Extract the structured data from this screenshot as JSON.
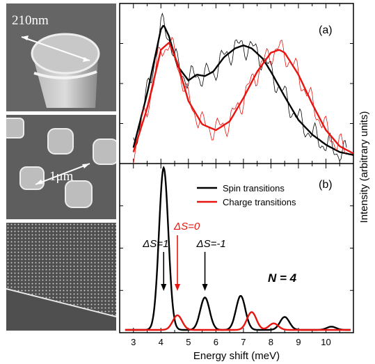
{
  "micrographs": [
    {
      "name": "single-pillar",
      "scale_label": "210nm"
    },
    {
      "name": "pillar-array",
      "scale_label": "1μm"
    },
    {
      "name": "lattice-array",
      "scale_label": ""
    }
  ],
  "chart_data": [
    {
      "type": "line",
      "panel_label": "(a)",
      "xlim": [
        2.5,
        11
      ],
      "ylim": [
        0,
        1
      ],
      "series": [
        {
          "name": "Spin transitions",
          "color": "#000000",
          "x": [
            3,
            3.5,
            4,
            4.1,
            4.3,
            4.6,
            5,
            5.3,
            5.6,
            5.9,
            6.3,
            6.7,
            7,
            7.3,
            7.7,
            8,
            8.5,
            9,
            9.5,
            10,
            10.5,
            11
          ],
          "y": [
            0.08,
            0.45,
            0.89,
            0.92,
            0.84,
            0.64,
            0.54,
            0.58,
            0.57,
            0.6,
            0.7,
            0.76,
            0.78,
            0.76,
            0.69,
            0.6,
            0.43,
            0.27,
            0.17,
            0.1,
            0.05,
            0.03
          ]
        },
        {
          "name": "Charge transitions",
          "color": "#e8140f",
          "x": [
            3,
            3.5,
            4,
            4.3,
            4.6,
            5,
            5.5,
            6,
            6.5,
            7,
            7.5,
            8,
            8.3,
            8.5,
            9,
            9.5,
            10,
            10.5,
            11
          ],
          "y": [
            0.05,
            0.35,
            0.75,
            0.8,
            0.66,
            0.4,
            0.24,
            0.2,
            0.26,
            0.42,
            0.6,
            0.73,
            0.75,
            0.73,
            0.58,
            0.38,
            0.2,
            0.09,
            0.04
          ]
        }
      ]
    },
    {
      "type": "line",
      "panel_label": "(b)",
      "xlabel": "Energy shift (meV)",
      "xlim": [
        2.5,
        11
      ],
      "ylim": [
        0,
        1
      ],
      "x_ticks": [
        3,
        4,
        5,
        6,
        7,
        8,
        9,
        10
      ],
      "series": [
        {
          "name": "Spin transitions",
          "color": "#000000",
          "peaks": [
            {
              "x": 4.1,
              "y": 1.0
            },
            {
              "x": 5.6,
              "y": 0.2
            },
            {
              "x": 6.9,
              "y": 0.21
            },
            {
              "x": 8.5,
              "y": 0.08
            },
            {
              "x": 10.2,
              "y": 0.02
            }
          ]
        },
        {
          "name": "Charge transitions",
          "color": "#e8140f",
          "peaks": [
            {
              "x": 4.6,
              "y": 0.09
            },
            {
              "x": 7.3,
              "y": 0.11
            },
            {
              "x": 8.1,
              "y": 0.04
            }
          ]
        }
      ],
      "annotations": [
        {
          "text": "ΔS=1",
          "x": 4.1,
          "color": "#000000"
        },
        {
          "text": "ΔS=0",
          "x": 4.6,
          "color": "#e8140f"
        },
        {
          "text": "ΔS=-1",
          "x": 5.6,
          "color": "#000000"
        }
      ],
      "note": "N = 4"
    }
  ],
  "ylabel": "Intensity (arbitrary units)"
}
